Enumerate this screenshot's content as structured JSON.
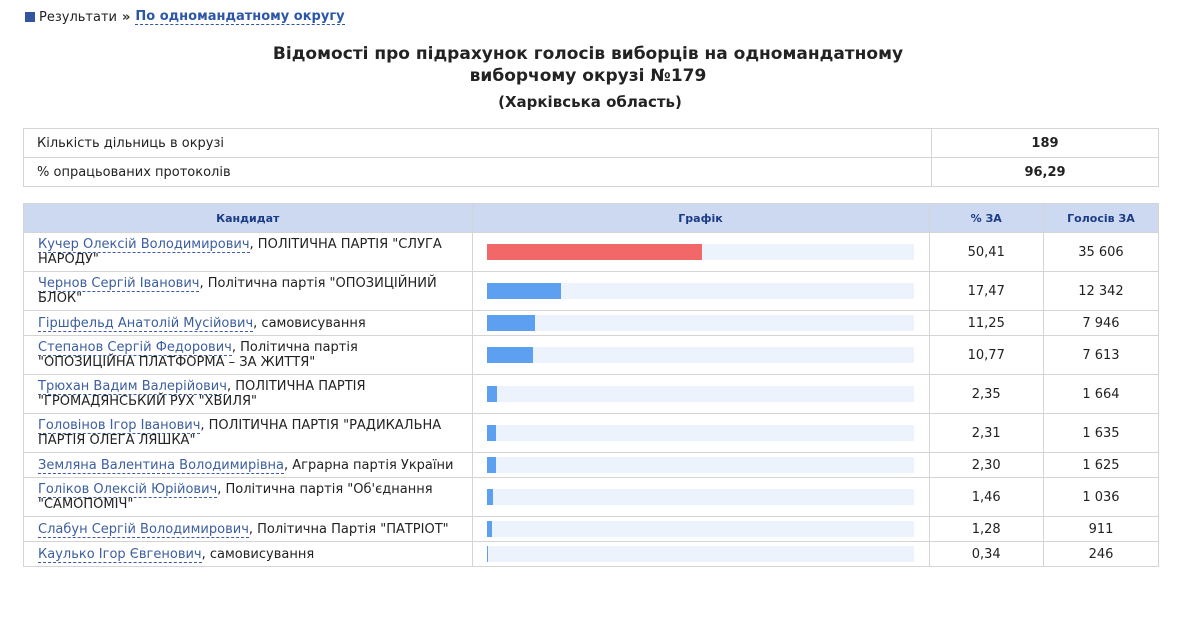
{
  "breadcrumb": {
    "root": "Результати",
    "separator": "»",
    "current": "По одномандатному округу"
  },
  "header": {
    "title_line1": "Відомості про підрахунок голосів виборців на одномандатному",
    "title_line2": "виборчому окрузі №179",
    "region": "(Харківська область)"
  },
  "summary": {
    "rows": [
      [
        "Кількість дільниць в окрузі",
        "189"
      ],
      [
        "% опрацьованих протоколів",
        "96,29"
      ]
    ]
  },
  "table": {
    "columns": [
      "Кандидат",
      "Графік",
      "% ЗА",
      "Голосів ЗА"
    ],
    "xlim": [
      0,
      100
    ],
    "rows": [
      {
        "name": "Кучер Олексій Володимирович",
        "party": ", ПОЛІТИЧНА ПАРТІЯ \"СЛУГА НАРОДУ\"",
        "percent": 50.41,
        "percent_label": "50,41",
        "votes": "35 606",
        "color": "#f26868"
      },
      {
        "name": "Чернов Сергій Іванович",
        "party": ", Політична партія \"ОПОЗИЦІЙНИЙ БЛОК\"",
        "percent": 17.47,
        "percent_label": "17,47",
        "votes": "12 342",
        "color": "#5d9ff0"
      },
      {
        "name": "Гіршфельд Анатолій Мусійович",
        "party": ", самовисування",
        "percent": 11.25,
        "percent_label": "11,25",
        "votes": "7 946",
        "color": "#5d9ff0"
      },
      {
        "name": "Степанов Сергій Федорович",
        "party": ", Політична партія \"ОПОЗИЦІЙНА ПЛАТФОРМА – ЗА ЖИТТЯ\"",
        "percent": 10.77,
        "percent_label": "10,77",
        "votes": "7 613",
        "color": "#5d9ff0"
      },
      {
        "name": "Трюхан Вадим Валерійович",
        "party": ", ПОЛІТИЧНА ПАРТІЯ \"ГРОМАДЯНСЬКИЙ РУХ \"ХВИЛЯ\"",
        "percent": 2.35,
        "percent_label": "2,35",
        "votes": "1 664",
        "color": "#5d9ff0"
      },
      {
        "name": "Головінов Ігор Іванович",
        "party": ", ПОЛІТИЧНА ПАРТІЯ \"РАДИКАЛЬНА ПАРТІЯ ОЛЕГА ЛЯШКА\"",
        "percent": 2.31,
        "percent_label": "2,31",
        "votes": "1 635",
        "color": "#5d9ff0"
      },
      {
        "name": "Земляна Валентина Володимирівна",
        "party": ", Аграрна партія України",
        "percent": 2.3,
        "percent_label": "2,30",
        "votes": "1 625",
        "color": "#5d9ff0"
      },
      {
        "name": "Голіков Олексій Юрійович",
        "party": ", Політична партія \"Об'єднання \"САМОПОМІЧ\"",
        "percent": 1.46,
        "percent_label": "1,46",
        "votes": "1 036",
        "color": "#5d9ff0"
      },
      {
        "name": "Слабун Сергій Володимирович",
        "party": ", Політична Партія \"ПАТРІОТ\"",
        "percent": 1.28,
        "percent_label": "1,28",
        "votes": "911",
        "color": "#5d9ff0"
      },
      {
        "name": "Каулько Ігор Євгенович",
        "party": ", самовисування",
        "percent": 0.34,
        "percent_label": "0,34",
        "votes": "246",
        "color": "#5d9ff0"
      }
    ]
  }
}
